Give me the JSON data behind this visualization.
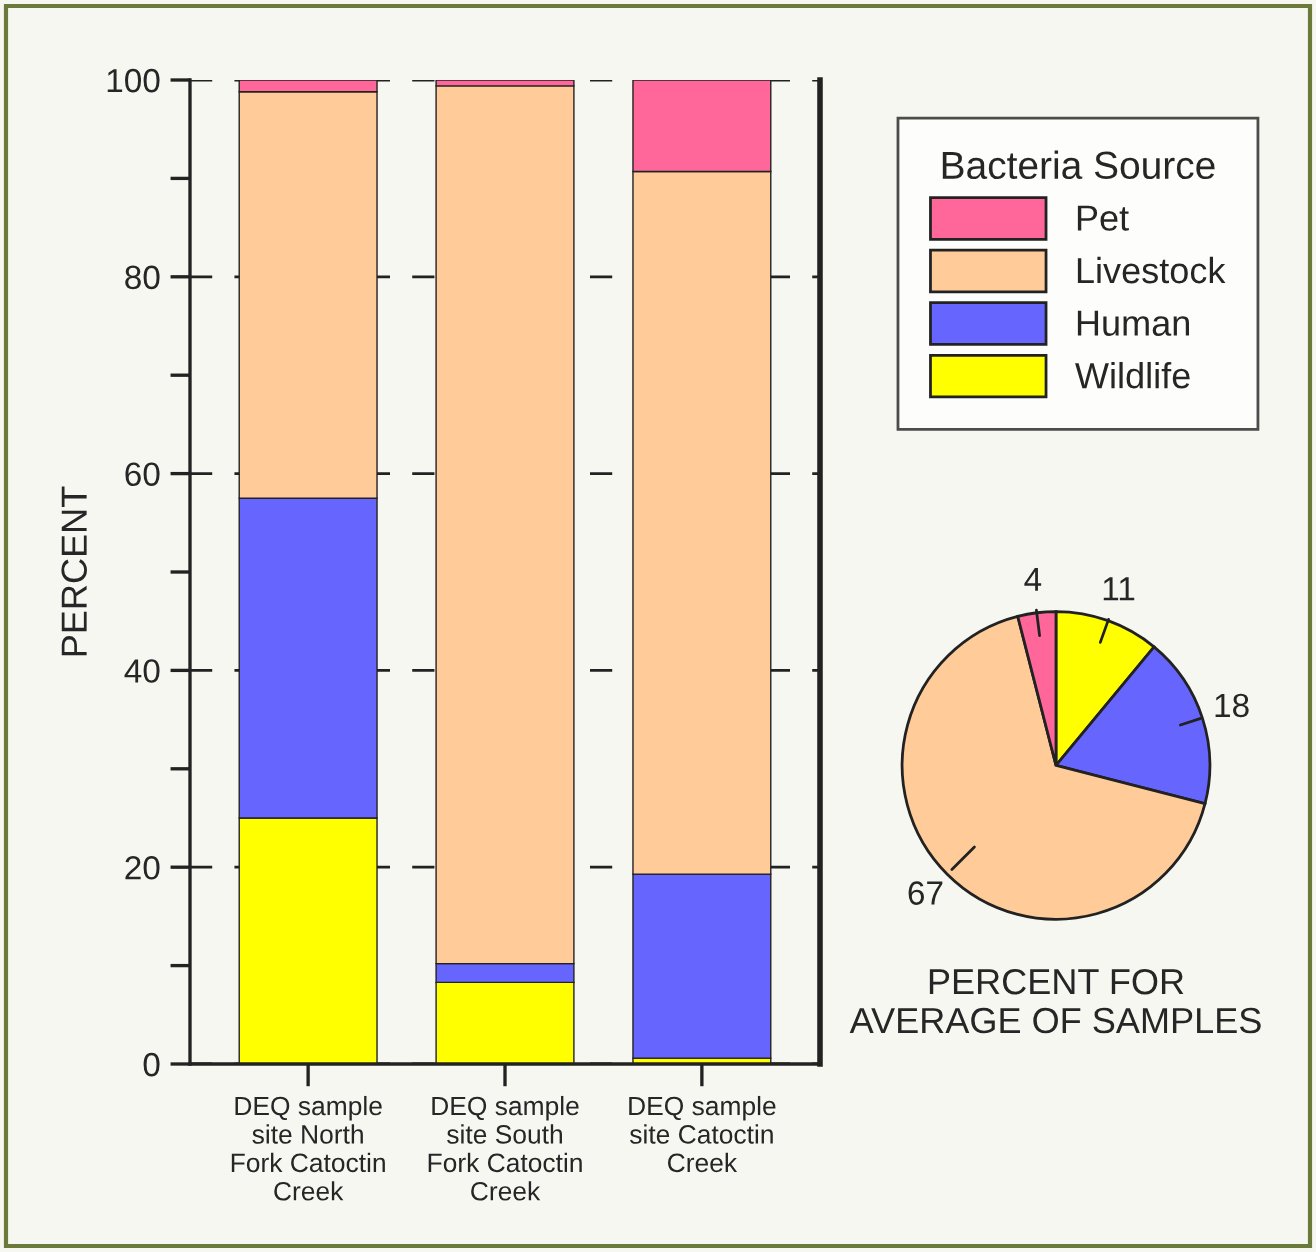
{
  "chart_data": [
    {
      "type": "bar",
      "stacked": true,
      "ylabel": "PERCENT",
      "legend_title": "Bacteria Source",
      "legend": "right",
      "grid": "y",
      "categories": [
        "DEQ sample site North Fork Catoctin Creek",
        "DEQ sample site South Fork Catoctin Creek",
        "DEQ sample site Catoctin Creek"
      ],
      "ylim": [
        0,
        100
      ],
      "yticks": [
        0,
        {
          "value": 10,
          "label": null
        },
        20,
        {
          "value": 30,
          "label": null
        },
        40,
        {
          "value": 50,
          "label": null
        },
        60,
        {
          "value": 70,
          "label": null
        },
        80,
        {
          "value": 90,
          "label": null
        },
        100
      ],
      "series": [
        {
          "name": "Wildlife",
          "color": "#ffff00",
          "values": [
            25,
            8.3,
            0.6
          ]
        },
        {
          "name": "Human",
          "color": "#6666ff",
          "values": [
            32.5,
            1.9,
            18.7
          ]
        },
        {
          "name": "Livestock",
          "color": "#ffcc99",
          "values": [
            41.3,
            89.2,
            71.4
          ]
        },
        {
          "name": "Pet",
          "color": "#ff6699",
          "values": [
            1.2,
            0.6,
            9.3
          ]
        }
      ]
    },
    {
      "type": "pie",
      "xlabel": "PERCENT FOR\nAVERAGE OF SAMPLES",
      "data_labels": true,
      "categories": [
        null,
        null,
        null,
        null
      ],
      "values": [
        11,
        18,
        67,
        4
      ],
      "colors": [
        "#ffff00",
        "#6666ff",
        "#ffcc99",
        "#ff6699"
      ]
    }
  ]
}
